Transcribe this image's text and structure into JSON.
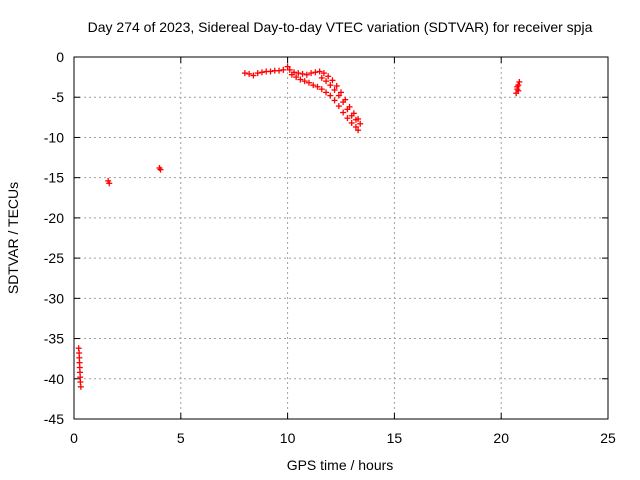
{
  "chart_data": {
    "type": "scatter",
    "title": "Day 274 of 2023, Sidereal Day-to-day VTEC variation (SDTVAR) for receiver spja",
    "xlabel": "GPS time / hours",
    "ylabel": "SDTVAR / TECUs",
    "xlim": [
      0,
      25
    ],
    "ylim": [
      -45,
      0
    ],
    "xticks": [
      0,
      5,
      10,
      15,
      20,
      25
    ],
    "yticks": [
      0,
      -5,
      -10,
      -15,
      -20,
      -25,
      -30,
      -35,
      -40,
      -45
    ],
    "grid": true,
    "marker": "+",
    "series": [
      {
        "name": "SDTVAR",
        "color": "#ff0000",
        "points": [
          [
            0.22,
            -36.2
          ],
          [
            0.24,
            -36.8
          ],
          [
            0.25,
            -37.4
          ],
          [
            0.26,
            -38.0
          ],
          [
            0.27,
            -38.6
          ],
          [
            0.28,
            -39.2
          ],
          [
            0.29,
            -39.8
          ],
          [
            0.3,
            -40.4
          ],
          [
            0.32,
            -41.0
          ],
          [
            1.6,
            -15.4
          ],
          [
            1.65,
            -15.7
          ],
          [
            4.0,
            -13.8
          ],
          [
            4.05,
            -14.0
          ],
          [
            8.0,
            -2.0
          ],
          [
            8.2,
            -2.1
          ],
          [
            8.4,
            -2.3
          ],
          [
            8.6,
            -2.0
          ],
          [
            8.8,
            -1.9
          ],
          [
            9.0,
            -1.8
          ],
          [
            9.2,
            -1.8
          ],
          [
            9.4,
            -1.7
          ],
          [
            9.6,
            -1.7
          ],
          [
            9.8,
            -1.6
          ],
          [
            10.0,
            -1.2
          ],
          [
            10.1,
            -1.6
          ],
          [
            10.3,
            -1.9
          ],
          [
            10.5,
            -2.0
          ],
          [
            10.7,
            -2.1
          ],
          [
            10.9,
            -2.2
          ],
          [
            11.1,
            -2.0
          ],
          [
            11.3,
            -1.9
          ],
          [
            11.5,
            -1.8
          ],
          [
            11.7,
            -2.0
          ],
          [
            11.9,
            -2.4
          ],
          [
            12.1,
            -2.9
          ],
          [
            12.3,
            -3.6
          ],
          [
            12.5,
            -4.4
          ],
          [
            12.7,
            -5.3
          ],
          [
            12.9,
            -6.2
          ],
          [
            13.1,
            -7.0
          ],
          [
            13.3,
            -7.7
          ],
          [
            13.4,
            -8.3
          ],
          [
            10.2,
            -2.2
          ],
          [
            10.4,
            -2.5
          ],
          [
            10.6,
            -2.8
          ],
          [
            10.8,
            -3.0
          ],
          [
            11.0,
            -3.2
          ],
          [
            11.2,
            -3.5
          ],
          [
            11.4,
            -3.7
          ],
          [
            11.6,
            -4.0
          ],
          [
            11.8,
            -4.4
          ],
          [
            12.0,
            -4.8
          ],
          [
            12.2,
            -5.4
          ],
          [
            12.4,
            -6.1
          ],
          [
            12.6,
            -6.9
          ],
          [
            12.8,
            -7.6
          ],
          [
            13.0,
            -8.2
          ],
          [
            13.2,
            -8.7
          ],
          [
            13.3,
            -9.1
          ],
          [
            11.6,
            -2.6
          ],
          [
            11.8,
            -3.0
          ],
          [
            12.0,
            -3.5
          ],
          [
            12.2,
            -4.1
          ],
          [
            12.4,
            -4.8
          ],
          [
            12.6,
            -5.6
          ],
          [
            12.8,
            -6.5
          ],
          [
            13.0,
            -7.3
          ],
          [
            13.2,
            -7.8
          ],
          [
            20.7,
            -4.5
          ],
          [
            20.75,
            -4.0
          ],
          [
            20.8,
            -3.5
          ],
          [
            20.85,
            -3.1
          ],
          [
            20.8,
            -4.2
          ],
          [
            20.75,
            -3.7
          ]
        ]
      }
    ]
  }
}
